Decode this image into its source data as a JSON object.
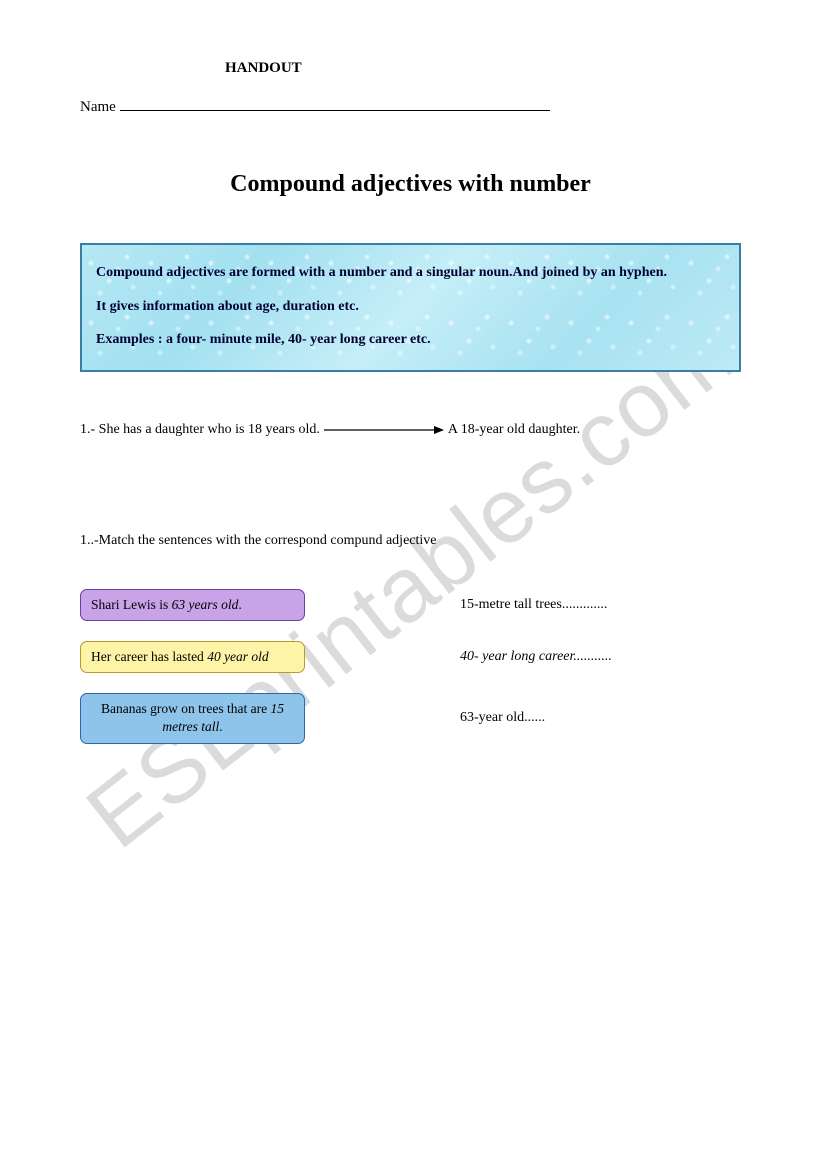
{
  "header": {
    "label": "HANDOUT",
    "name_label": "Name"
  },
  "title": "Compound adjectives with number",
  "info_box": {
    "border_color": "#3a7ea3",
    "line1": "Compound adjectives are formed with a  number and a singular noun.And joined by an hyphen.",
    "line2": "It gives information about age, duration etc.",
    "line3": "Examples : a four- minute mile, 40- year long career etc."
  },
  "example": {
    "left": "1.- She has a daughter who is 18 years old.",
    "right": "A 18-year old daughter.",
    "arrow_color": "#000000"
  },
  "instruction": "1..-Match the sentences with the correspond compund adjective",
  "match": {
    "rows": [
      {
        "box_bg": "#c9a3e8",
        "box_border": "#6a3fa0",
        "box_prefix": "Shari Lewis is ",
        "box_em": "63 years old",
        "box_suffix": ".",
        "right": "15-metre tall trees.............",
        "right_italic": false
      },
      {
        "box_bg": "#fdf4a8",
        "box_border": "#b59b2c",
        "box_prefix": "Her career has lasted ",
        "box_em": "40 year old",
        "box_suffix": "",
        "right": "40- year long career...........",
        "right_italic": true
      },
      {
        "box_bg": "#8fc4ea",
        "box_border": "#2b6aa8",
        "box_prefix": "Bananas grow on trees that are ",
        "box_em": "15 metres tall",
        "box_suffix": ".",
        "right": "63-year old......",
        "right_italic": false
      }
    ]
  },
  "watermark": "ESLprintables.com"
}
